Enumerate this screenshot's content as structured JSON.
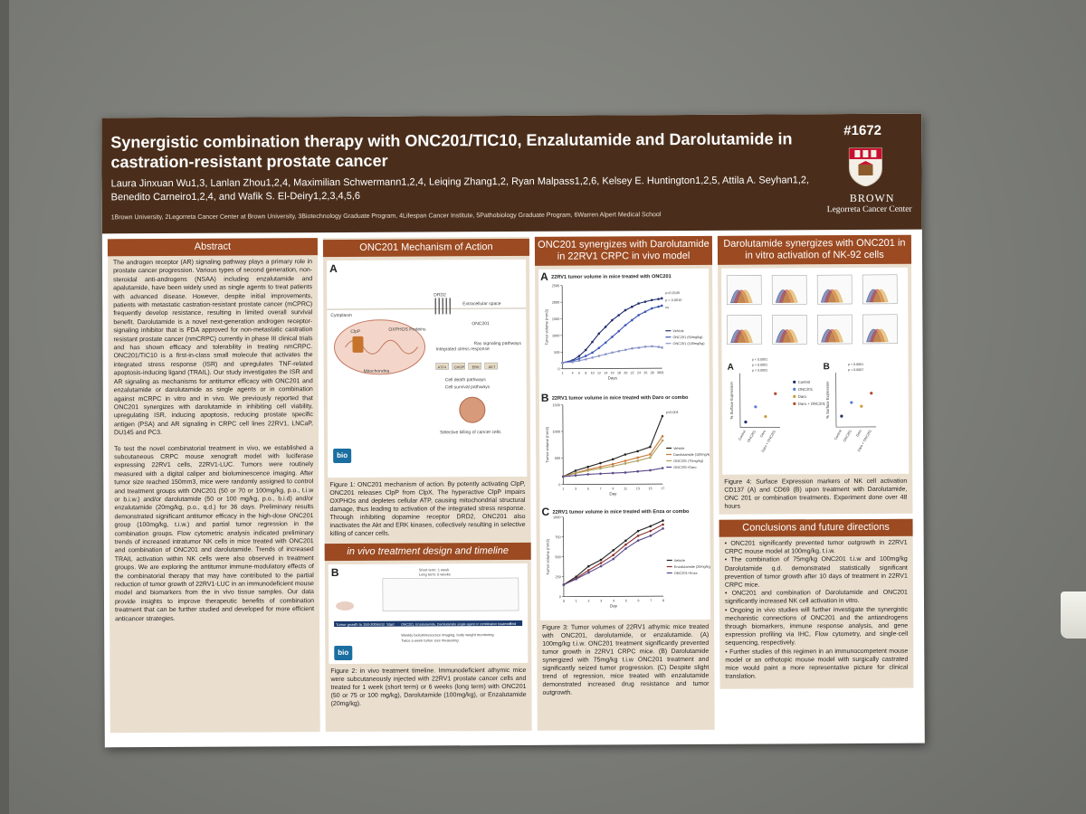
{
  "poster": {
    "number": "#1672",
    "title": "Synergistic combination therapy with ONC201/TIC10, Enzalutamide and Darolutamide in castration-resistant prostate cancer",
    "authors_line1": "Laura Jinxuan Wu1,3, Lanlan Zhou1,2,4, Maximilian Schwermann1,2,4, Leiqing Zhang1,2, Ryan Malpass1,2,6, Kelsey E. Huntington1,2,5, Attila A. Seyhan1,2,",
    "authors_line2": "Benedito Carneiro1,2,4, and Wafik S. El-Deiry1,2,3,4,5,6",
    "affiliations": "1Brown University, 2Legorreta Cancer Center at Brown University, 3Biotechnology Graduate Program, 4Lifespan Cancer Institute, 5Pathobiology Graduate Program, 6Warren Alpert Medical School",
    "institution": "BROWN",
    "institution_sub": "Legorreta Cancer Center"
  },
  "abstract": {
    "heading": "Abstract",
    "para1": "The androgen receptor (AR) signaling pathway plays a primary role in prostate cancer progression. Various types of second generation, non-steroidal anti-androgens (NSAA) including enzalutamide and apalutamide, have been widely used as single agents to treat patients with advanced disease. However, despite initial improvements, patients with metastatic castration-resistant prostate cancer (mCPRC) frequently develop resistance, resulting in limited overall survival benefit. Darolutamide is a novel next-generation androgen receptor-signaling inhibitor that is FDA approved for non-metastatic castration resistant prostate cancer (nmCRPC) currently in phase III clinical trials and has shown efficacy and tolerability in treating nmCRPC. ONC201/TIC10 is a first-in-class small molecule that activates the integrated stress response (ISR) and upregulates TNF-related apoptosis-inducing ligand (TRAIL). Our study investigates the ISR and AR signaling as mechanisms for antitumor efficacy with ONC201 and enzalutamide or darolutamide as single agents or in combination against mCRPC in vitro and in vivo. We previously reported that ONC201 synergizes with darolutamide in inhibiting cell viability, upregulating ISR, inducing apoptosis, reducing prostate specific antigen (PSA) and AR signaling in CRPC cell lines 22RV1, LNCaP, DU145 and PC3.",
    "para2": "To test the novel combinatorial treatment in vivo, we established a subcutaneous CRPC mouse xenograft model with luciferase expressing 22RV1 cells, 22RV1-LUC. Tumors were routinely measured with a digital caliper and bioluminescence imaging. After tumor size reached 150mm3, mice were randomly assigned to control and treatment groups with ONC201 (50 or 70 or 100mg/kg, p.o., t.i.w or b.i.w.) and/or darolutamide (50 or 100 mg/kg, p.o., b.i.d) and/or enzalutamide (20mg/kg, p.o., q.d.) for 36 days. Preliminary results demonstrated significant antitumor efficacy in the high-dose ONC201 group (100mg/kg, t.i.w.) and partial tumor regression in the combination groups. Flow cytometric analysis indicated preliminary trends of increased intratumor NK cells in mice treated with ONC201 and combination of ONC201 and darolutamide. Trends of increased TRAIL activation within NK cells were also observed in treatment groups. We are exploring the antitumor immune-modulatory effects of the combinatorial therapy that may have contributed to the partial reduction of tumor growth of 22RV1-LUC in an immunodeficient mouse model and biomarkers from the in vivo tissue samples. Our data provide insights to improve therapeutic benefits of combination treatment that can be further studied and developed for more efficient anticancer strategies."
  },
  "mechanism": {
    "heading": "ONC201 Mechanism of Action",
    "panel": "A",
    "labels": [
      "Extracellular space",
      "Cytoplasm",
      "DRD2",
      "ONC201",
      "ClpP",
      "OXPHOS Proteins",
      "Mitochondria",
      "Integrated stress response",
      "Ras signaling pathways",
      "ATF4",
      "CHOP",
      "ERK",
      "AKT",
      "Cell death pathways",
      "Cell survival pathways",
      "Selective killing of cancer cells"
    ],
    "logo": "bio",
    "caption": "Figure 1: ONC201 mechanism of action. By potently activating ClpP, ONC201 releases ClpP from ClpX. The hyperactive ClpP impairs OXPHOs and depletes cellular ATP, causing mitochondrial structural damage, thus leading to activation of the integrated stress response. Through inhibiting dopamine receptor DRD2, ONC201 also inactivates the Akt and ERK kinases, collectively resulting in selective killing of cancer cells."
  },
  "design": {
    "heading": "in vivo treatment design and timeline",
    "panel": "B",
    "labels": [
      "Tumor growth to 150-200mm3",
      "Start",
      "ONC201, Enzalutamide, Darolutamide single agent or combination treatment",
      "End",
      "Weekly bioluminescence imaging, body weight monitoring",
      "Twice a week tumor size measuring",
      "Short term: 1 week",
      "Long term: 6 weeks"
    ],
    "logo": "bio",
    "caption": "Figure 2: in vivo treatment timeline. Immunodeficient athymic mice were subcutaneously injected with 22RV1 prostate cancer cells and treated for 1 week (short term) or 6 weeks (long term) with ONC201 (50 or 75 or 100 mg/kg), Darolutamide (100mg/kg), or Enzalutamide (20mg/kg)."
  },
  "synergy": {
    "heading": "ONC201 synergizes with Darolutamide in 22RV1 CRPC in vivo model",
    "caption": "Figure 3: Tumor volumes of 22RV1 athymic mice treated with ONC201, darolutamide, or enzalutamide. (A) 100mg/kg t.i.w. ONC201 treatment significantly prevented tumor growth in 22RV1 CRPC mice. (B) Darolutamide synergized with 75mg/kg t.i.w ONC201 treatment and significantly seized tumor progression. (C) Despite slight trend of regression, mice treated with enzalutamide demonstrated increased drug resistance and tumor outgrowth."
  },
  "nk": {
    "heading": "Darolutamide synergizes with ONC201 in in vitro activation of NK-92 cells",
    "caption": "Figure 4: Surface Expression markers of NK cell activation CD137 (A) and CD69 (B) upon treatment with Darolutamide, ONC 201 or combination treatments. Experiment done over 48 hours"
  },
  "conclusions": {
    "heading": "Conclusions and future directions",
    "bullets": [
      "ONC201 significantly prevented tumor outgrowth in 22RV1 CRPC mouse model at 100mg/kg, t.i.w.",
      "The combination of 75mg/kg ONC201 t.i.w and 100mg/kg Darolutamide q.d. demonstrated statistically significant prevention of tumor growth after 10 days of treatment in 22RV1 CRPC mice.",
      "ONC201 and combination of Darolutamide and ONC201 significantly increased NK cell activation in vitro.",
      "Ongoing in vivo studies will further investigate the synergistic mechanistic connections of ONC201 and the antiandrogens through biomarkers, immune response analysis, and gene expression profiling via IHC, Flow cytometry, and single-cell sequencing, respectively.",
      "Further studies of this regimen in an immunocompetent mouse model or an orthotopic mouse model with surgically castrated mice would paint a more representative picture for clinical translation."
    ]
  },
  "chart_data": [
    {
      "type": "line",
      "panel": "A",
      "title": "22RV1 tumor volume in mice treated with ONC201",
      "xlabel": "Days",
      "ylabel": "Tumor volume (mm3)",
      "x": [
        1,
        4,
        6,
        8,
        10,
        12,
        14,
        16,
        18,
        20,
        22,
        24,
        26,
        28,
        30,
        31
      ],
      "ylim": [
        0,
        2500
      ],
      "yticks": [
        0,
        500,
        1000,
        1500,
        2000,
        2500
      ],
      "annotations": [
        "p=0.0145",
        "p = 0.0010",
        "ns"
      ],
      "series": [
        {
          "name": "Vehicle",
          "color": "#1f2d6b",
          "values": [
            180,
            250,
            380,
            560,
            800,
            1050,
            1250,
            1450,
            1600,
            1750,
            1850,
            1950,
            2000,
            2050,
            2080,
            2100
          ]
        },
        {
          "name": "ONC201 (50mg/kg)",
          "color": "#3b55b5",
          "values": [
            180,
            230,
            300,
            380,
            480,
            620,
            780,
            950,
            1120,
            1300,
            1450,
            1600,
            1700,
            1800,
            1850,
            1880
          ]
        },
        {
          "name": "ONC201 (100mg/kg)",
          "color": "#8a93c8",
          "values": [
            180,
            200,
            240,
            280,
            330,
            380,
            430,
            480,
            520,
            560,
            600,
            620,
            650,
            660,
            640,
            620
          ]
        }
      ]
    },
    {
      "type": "line",
      "panel": "B",
      "title": "22RV1 tumor volume in mice treated with Daro or combo",
      "xlabel": "Day",
      "ylabel": "Tumor volume (mm3)",
      "x": [
        1,
        3,
        5,
        7,
        9,
        11,
        13,
        15,
        17
      ],
      "ylim": [
        0,
        1500
      ],
      "yticks": [
        0,
        500,
        1000,
        1500
      ],
      "annotations": [
        "p<0.001"
      ],
      "series": [
        {
          "name": "Vehicle",
          "color": "#222222",
          "values": [
            150,
            260,
            330,
            400,
            470,
            560,
            620,
            700,
            1280
          ]
        },
        {
          "name": "Darolutamide (100mg/kg)",
          "color": "#c97a3a",
          "values": [
            150,
            220,
            280,
            330,
            380,
            440,
            500,
            560,
            900
          ]
        },
        {
          "name": "ONC201 (75mg/kg)",
          "color": "#b0a060",
          "values": [
            150,
            210,
            260,
            300,
            340,
            390,
            440,
            500,
            820
          ]
        },
        {
          "name": "ONC201+Daro",
          "color": "#5a4a8a",
          "values": [
            150,
            170,
            190,
            200,
            210,
            220,
            240,
            260,
            300
          ]
        }
      ]
    },
    {
      "type": "line",
      "panel": "C",
      "title": "22RV1 tumor volume in mice treated with Enza or combo",
      "xlabel": "Day",
      "ylabel": "Tumor volume (mm3)",
      "x": [
        0,
        1,
        2,
        3,
        4,
        5,
        6,
        7,
        8
      ],
      "ylim": [
        0,
        1000
      ],
      "yticks": [
        0,
        250,
        500,
        750,
        1000
      ],
      "series": [
        {
          "name": "Vehicle",
          "color": "#222222",
          "values": [
            150,
            250,
            380,
            460,
            580,
            700,
            820,
            880,
            950
          ]
        },
        {
          "name": "Enzalutamide (20mg/kg)",
          "color": "#8a3030",
          "values": [
            150,
            230,
            330,
            420,
            520,
            650,
            760,
            820,
            900
          ]
        },
        {
          "name": "ONC201+Enza",
          "color": "#5a4a8a",
          "values": [
            150,
            220,
            300,
            380,
            470,
            600,
            700,
            760,
            850
          ]
        }
      ]
    },
    {
      "type": "scatter",
      "panel": "A",
      "title": "CD137",
      "ylabel": "% Surface Expression",
      "categories": [
        "Control",
        "ONC201",
        "Daro",
        "Daro + ONC201"
      ],
      "values": [
        10,
        38,
        20,
        62
      ],
      "ylim": [
        0,
        100
      ],
      "annotations": [
        "p < 0.0001",
        "p < 0.0001",
        "p < 0.0001"
      ]
    },
    {
      "type": "scatter",
      "panel": "B",
      "title": "CD69",
      "ylabel": "% Surface Expression",
      "categories": [
        "Control",
        "ONC201",
        "Daro",
        "Daro + ONC201"
      ],
      "values": [
        20,
        45,
        38,
        62
      ],
      "ylim": [
        0,
        100
      ],
      "annotations": [
        "p = 0.0007",
        "p < 0.0001"
      ]
    }
  ],
  "legends": {
    "nk": [
      "Control",
      "ONC201",
      "Daro",
      "Daro + ONC201"
    ],
    "nk_colors": [
      "#1f2d6b",
      "#5a7bd0",
      "#c99a3a",
      "#b34a2a"
    ]
  }
}
